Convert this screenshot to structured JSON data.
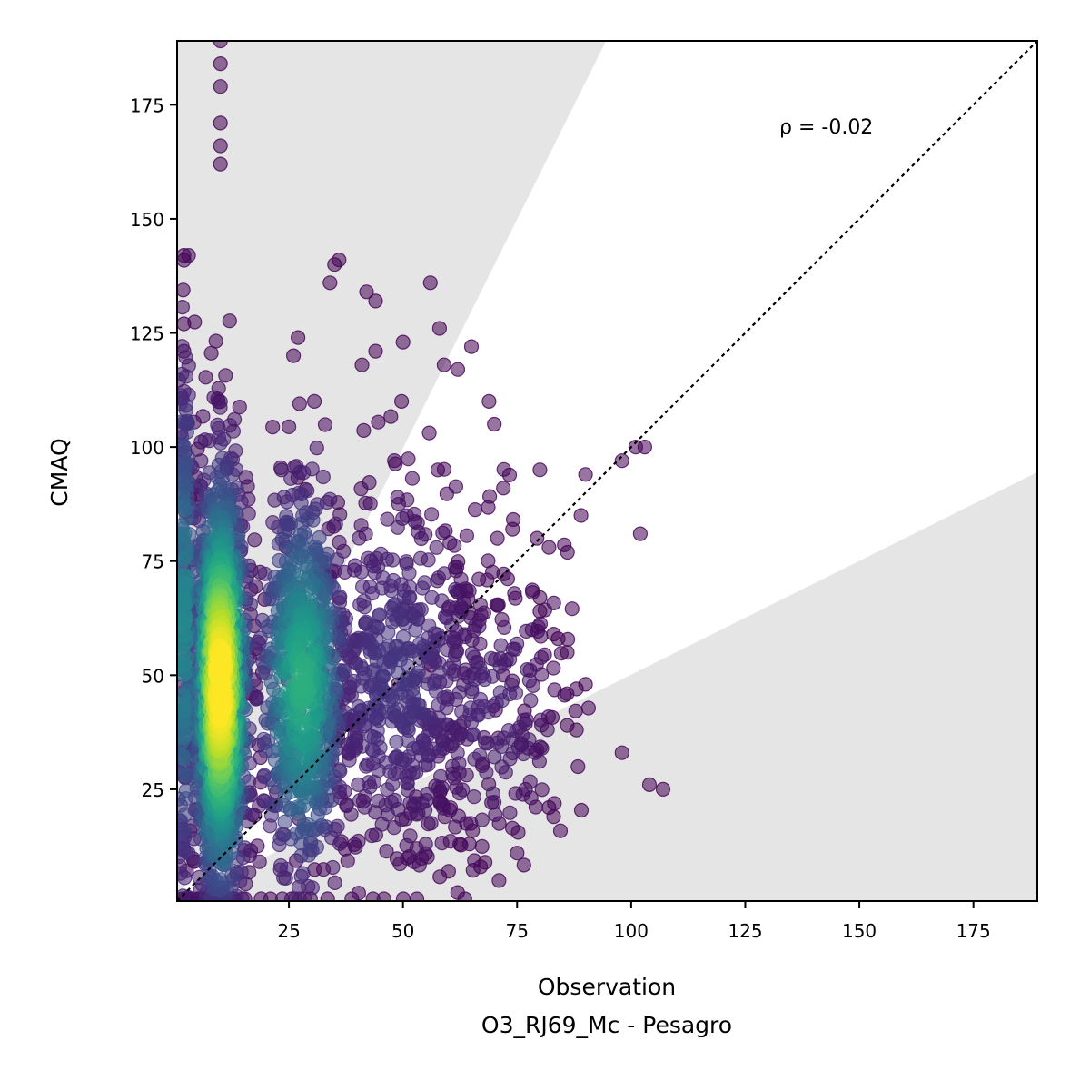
{
  "chart_data": {
    "type": "scatter",
    "title": "",
    "xlabel": "Observation",
    "xlabel_sub": "O3_RJ69_Mc - Pesagro",
    "ylabel": "CMAQ",
    "xlim": [
      0.5,
      189
    ],
    "ylim": [
      0.5,
      189
    ],
    "xticks": [
      25,
      50,
      75,
      100,
      125,
      150,
      175
    ],
    "yticks": [
      25,
      50,
      75,
      100,
      125,
      150,
      175
    ],
    "annotation": "ρ = -0.02",
    "reference_line": {
      "type": "1:1",
      "style": "dotted",
      "color": "#000000"
    },
    "shaded_regions": [
      {
        "name": "over-prediction",
        "lower_slope": 2,
        "color": "#e5e5e5"
      },
      {
        "name": "under-prediction",
        "upper_slope": 0.5,
        "color": "#e5e5e5"
      }
    ],
    "colormap": "viridis (point density)",
    "point_alpha": 0.55,
    "clusters": [
      {
        "x_center": 10,
        "x_spread": 3.0,
        "y_center": 48,
        "y_spread": 24,
        "y_min": 1,
        "y_max": 189,
        "count": 1400,
        "weight": 1.0
      },
      {
        "x_center": 2,
        "x_spread": 1.2,
        "y_center": 60,
        "y_spread": 30,
        "y_min": 1,
        "y_max": 142,
        "count": 250,
        "weight": 0.45
      },
      {
        "x_center": 28,
        "x_spread": 5.0,
        "y_center": 48,
        "y_spread": 22,
        "y_min": 1,
        "y_max": 110,
        "count": 700,
        "weight": 0.6
      },
      {
        "x_center": 48,
        "x_spread": 11.0,
        "y_center": 50,
        "y_spread": 22,
        "y_min": 1,
        "y_max": 110,
        "count": 600,
        "weight": 0.15
      },
      {
        "x_center": 68,
        "x_spread": 9.0,
        "y_center": 42,
        "y_spread": 16,
        "y_min": 5,
        "y_max": 80,
        "count": 200,
        "weight": 0.1
      }
    ],
    "outliers": [
      [
        10,
        189
      ],
      [
        10,
        184
      ],
      [
        10,
        179
      ],
      [
        10,
        171
      ],
      [
        10,
        166
      ],
      [
        10,
        162
      ],
      [
        35,
        140
      ],
      [
        36,
        141
      ],
      [
        34,
        136
      ],
      [
        42,
        134
      ],
      [
        44,
        132
      ],
      [
        56,
        136
      ],
      [
        58,
        126
      ],
      [
        65,
        122
      ],
      [
        2,
        142
      ],
      [
        2,
        127
      ],
      [
        2,
        121
      ],
      [
        62,
        117
      ],
      [
        59,
        118
      ],
      [
        50,
        123
      ],
      [
        44,
        121
      ],
      [
        41,
        118
      ],
      [
        27,
        124
      ],
      [
        26,
        120
      ],
      [
        98,
        97
      ],
      [
        101,
        100
      ],
      [
        103,
        100
      ],
      [
        90,
        94
      ],
      [
        102,
        81
      ],
      [
        89,
        85
      ],
      [
        98,
        33
      ],
      [
        104,
        26
      ],
      [
        107,
        25
      ],
      [
        86,
        39
      ],
      [
        88,
        38
      ],
      [
        90,
        48
      ],
      [
        88,
        47
      ],
      [
        84,
        58
      ],
      [
        86,
        55
      ],
      [
        83,
        59
      ],
      [
        80,
        67
      ],
      [
        80,
        64
      ],
      [
        82,
        78
      ],
      [
        80,
        95
      ],
      [
        74,
        82
      ],
      [
        70,
        105
      ],
      [
        72,
        91
      ],
      [
        60,
        7
      ],
      [
        68,
        9
      ],
      [
        67,
        8
      ],
      [
        75,
        11
      ],
      [
        82,
        21
      ],
      [
        83,
        19
      ]
    ]
  }
}
